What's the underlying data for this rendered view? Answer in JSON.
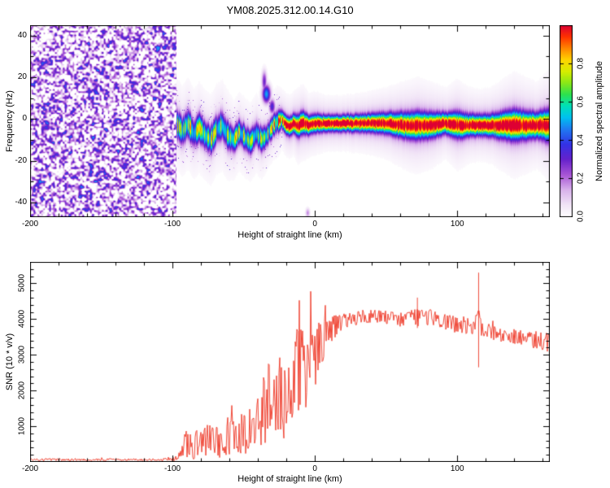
{
  "title": "YM08.2025.312.00.14.G10",
  "chart_data": [
    {
      "type": "heatmap",
      "title": "",
      "xlabel": "Height of straight line (km)",
      "ylabel": "Frequency (Hz)",
      "xlim": [
        -200,
        165
      ],
      "ylim": [
        -47,
        45
      ],
      "xticks": [
        -200,
        -100,
        0,
        100
      ],
      "xtick_labels": [
        "-200",
        "-100",
        "0",
        "100"
      ],
      "x_minor_step": 20,
      "yticks": [
        -40,
        -20,
        0,
        20,
        40
      ],
      "ytick_labels": [
        "-40",
        "-20",
        "0",
        "20",
        "40"
      ],
      "y_minor_step": 10,
      "colorbar": {
        "label": "Normalized spectral amplitude",
        "lim": [
          0,
          1
        ],
        "ticks": [
          0,
          0.2,
          0.4,
          0.6,
          0.8
        ],
        "tick_labels": [
          "0.0",
          "0.2",
          "0.4",
          "0.6",
          "0.8"
        ]
      },
      "colormap": [
        [
          0,
          "#ffffff"
        ],
        [
          0.06,
          "#f2e6f7"
        ],
        [
          0.14,
          "#d9b3ec"
        ],
        [
          0.22,
          "#a855d6"
        ],
        [
          0.3,
          "#6622cc"
        ],
        [
          0.38,
          "#3333e6"
        ],
        [
          0.46,
          "#1f7df2"
        ],
        [
          0.52,
          "#00c2f0"
        ],
        [
          0.58,
          "#00e0b8"
        ],
        [
          0.64,
          "#2ee24e"
        ],
        [
          0.7,
          "#8ae818"
        ],
        [
          0.76,
          "#d8ee00"
        ],
        [
          0.82,
          "#ffd500"
        ],
        [
          0.88,
          "#ff8800"
        ],
        [
          0.94,
          "#ff3300"
        ],
        [
          1,
          "#dd0033"
        ]
      ],
      "noise_region": {
        "x_range": [
          -200,
          -97
        ],
        "threshold": 0.35,
        "max_value": 0.48
      },
      "signal_trace": [
        [
          -97,
          -2,
          4,
          0.62
        ],
        [
          -93,
          -6,
          4,
          0.6
        ],
        [
          -89,
          -2,
          4,
          0.64
        ],
        [
          -85,
          -7,
          4,
          0.6
        ],
        [
          -81,
          -4,
          4,
          0.62
        ],
        [
          -77,
          -8,
          4,
          0.6
        ],
        [
          -73,
          -10,
          4,
          0.62
        ],
        [
          -69,
          -5,
          4,
          0.6
        ],
        [
          -65,
          -3,
          4,
          0.62
        ],
        [
          -61,
          -8,
          4,
          0.6
        ],
        [
          -57,
          -10,
          3.5,
          0.62
        ],
        [
          -53,
          -6,
          3.5,
          0.6
        ],
        [
          -49,
          -9,
          3.5,
          0.62
        ],
        [
          -45,
          -11,
          3.5,
          0.6
        ],
        [
          -41,
          -7,
          3.5,
          0.62
        ],
        [
          -37,
          -10,
          3.5,
          0.6
        ],
        [
          -33,
          -7,
          3,
          0.65
        ],
        [
          -29,
          -3,
          3,
          0.7
        ],
        [
          -26,
          -1,
          3,
          0.75
        ],
        [
          -23,
          0,
          2.5,
          0.8
        ],
        [
          -21,
          -2,
          2.5,
          0.92
        ],
        [
          -18,
          -4,
          2.5,
          0.96
        ],
        [
          -15,
          -2,
          2.5,
          0.95
        ],
        [
          -12,
          -3,
          3,
          0.97
        ],
        [
          -8,
          -2,
          3,
          0.96
        ],
        [
          -4,
          -3,
          2.5,
          0.97
        ],
        [
          0,
          -2,
          2.5,
          0.97
        ],
        [
          8,
          -2,
          2.2,
          0.97
        ],
        [
          20,
          -2,
          2.2,
          0.96
        ],
        [
          35,
          -2,
          2.4,
          0.97
        ],
        [
          50,
          -2,
          2.8,
          0.97
        ],
        [
          62,
          -3,
          3.4,
          0.97
        ],
        [
          72,
          -3,
          3.8,
          0.96
        ],
        [
          82,
          -3,
          3.4,
          0.97
        ],
        [
          92,
          -2,
          2.8,
          0.96
        ],
        [
          100,
          -3,
          3.6,
          0.97
        ],
        [
          108,
          -3,
          3,
          0.96
        ],
        [
          116,
          -3,
          2.8,
          0.97
        ],
        [
          124,
          -3,
          3,
          0.96
        ],
        [
          132,
          -3,
          3.6,
          0.97
        ],
        [
          140,
          -3,
          4.2,
          0.96
        ],
        [
          148,
          -3,
          3.8,
          0.96
        ],
        [
          156,
          -3,
          3.4,
          0.95
        ],
        [
          165,
          -3,
          4.5,
          0.92
        ]
      ],
      "trace_speckle": {
        "x_range": [
          -97,
          -23
        ],
        "band_hz": 16,
        "probability": 0.03,
        "max_value": 0.28
      },
      "blobs": [
        [
          -34,
          12,
          2,
          3,
          0.5
        ],
        [
          -35.5,
          18,
          1.2,
          3.5,
          0.3
        ],
        [
          -30,
          6,
          1.5,
          2.5,
          0.35
        ],
        [
          -5,
          -45,
          1,
          1.5,
          0.18
        ]
      ]
    },
    {
      "type": "line",
      "title": "",
      "xlabel": "Height of straight line (km)",
      "ylabel": "SNR (10 * v/v)",
      "xlim": [
        -200,
        165
      ],
      "ylim": [
        0,
        5600
      ],
      "xticks": [
        -200,
        -100,
        0,
        100
      ],
      "xtick_labels": [
        "-200",
        "-100",
        "0",
        "100"
      ],
      "x_minor_step": 20,
      "yticks": [
        1000,
        2000,
        3000,
        4000,
        5000
      ],
      "ytick_labels": [
        "1000",
        "2000",
        "3000",
        "4000",
        "5000"
      ],
      "y_minor_step": 200,
      "series": [
        {
          "name": "SNR",
          "color": "#ee3524",
          "mean_spread_points": [
            [
              -200,
              65,
              30
            ],
            [
              -160,
              65,
              30
            ],
            [
              -120,
              65,
              30
            ],
            [
              -103,
              70,
              35
            ],
            [
              -98,
              90,
              60
            ],
            [
              -94,
              250,
              220
            ],
            [
              -90,
              550,
              450
            ],
            [
              -86,
              450,
              380
            ],
            [
              -82,
              550,
              450
            ],
            [
              -78,
              500,
              420
            ],
            [
              -74,
              650,
              500
            ],
            [
              -70,
              600,
              480
            ],
            [
              -66,
              550,
              450
            ],
            [
              -62,
              750,
              550
            ],
            [
              -58,
              650,
              500
            ],
            [
              -54,
              800,
              600
            ],
            [
              -50,
              750,
              580
            ],
            [
              -46,
              850,
              620
            ],
            [
              -42,
              1000,
              750
            ],
            [
              -38,
              1300,
              950
            ],
            [
              -34,
              1600,
              1100
            ],
            [
              -30,
              1700,
              1200
            ],
            [
              -27,
              1400,
              1000
            ],
            [
              -24,
              2000,
              1300
            ],
            [
              -21,
              1800,
              1200
            ],
            [
              -18,
              2300,
              1400
            ],
            [
              -15,
              2100,
              1300
            ],
            [
              -12,
              2600,
              1300
            ],
            [
              -9,
              2500,
              1250
            ],
            [
              -6,
              2700,
              1200
            ],
            [
              -3,
              2900,
              1000
            ],
            [
              0,
              3000,
              900
            ],
            [
              4,
              3300,
              700
            ],
            [
              8,
              3600,
              500
            ],
            [
              12,
              3750,
              380
            ],
            [
              16,
              3850,
              300
            ],
            [
              20,
              3950,
              260
            ],
            [
              26,
              4000,
              220
            ],
            [
              32,
              4050,
              200
            ],
            [
              40,
              4080,
              190
            ],
            [
              48,
              4050,
              190
            ],
            [
              56,
              4000,
              200
            ],
            [
              64,
              3980,
              220
            ],
            [
              70,
              4000,
              280
            ],
            [
              74,
              3950,
              320
            ],
            [
              78,
              4050,
              260
            ],
            [
              84,
              4000,
              220
            ],
            [
              90,
              3930,
              210
            ],
            [
              96,
              3880,
              240
            ],
            [
              102,
              3840,
              300
            ],
            [
              108,
              3780,
              230
            ],
            [
              113,
              3800,
              210
            ],
            [
              115,
              3900,
              400
            ],
            [
              118,
              3700,
              260
            ],
            [
              124,
              3620,
              210
            ],
            [
              130,
              3570,
              200
            ],
            [
              138,
              3520,
              210
            ],
            [
              146,
              3470,
              230
            ],
            [
              154,
              3420,
              250
            ],
            [
              160,
              3370,
              260
            ],
            [
              165,
              3320,
              280
            ]
          ],
          "spikes": [
            [
              115,
              5300,
              2650
            ],
            [
              72,
              4600,
              3750
            ]
          ]
        }
      ]
    }
  ]
}
